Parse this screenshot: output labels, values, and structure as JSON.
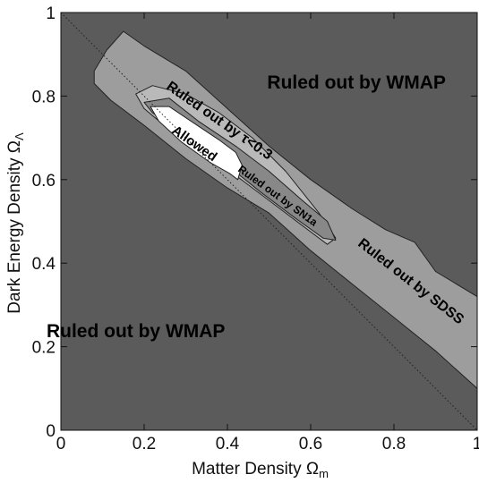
{
  "chart_data": {
    "type": "area",
    "xlabel": "Matter Density Ω",
    "xlabel_sub": "m",
    "ylabel": "Dark Energy Density Ω",
    "ylabel_sub": "Λ",
    "xlim": [
      0,
      1
    ],
    "ylim": [
      0,
      1
    ],
    "xticks": [
      0,
      0.2,
      0.4,
      0.6,
      0.8,
      1
    ],
    "xtick_labels": [
      "0",
      "0.2",
      "0.4",
      "0.6",
      "0.8",
      "1"
    ],
    "yticks": [
      0,
      0.2,
      0.4,
      0.6,
      0.8,
      1
    ],
    "ytick_labels": [
      "0",
      "0.2",
      "0.4",
      "0.6",
      "0.8",
      "1"
    ],
    "grid": false,
    "colors": {
      "background_region": "#5b5b5b",
      "sdss_region": "#9d9d9d",
      "tau_region": "#b9b9b9",
      "sn1a_region": "#888888",
      "allowed_region": "#ffffff",
      "outline": "#222222",
      "flat_line": "#222222"
    },
    "reference_line": {
      "name": "flat universe",
      "points": [
        [
          0,
          1
        ],
        [
          1,
          0
        ]
      ],
      "style": "dotted"
    },
    "regions": [
      {
        "label": "Ruled out by SDSS",
        "points": [
          [
            0.15,
            0.955
          ],
          [
            0.2,
            0.92
          ],
          [
            0.3,
            0.86
          ],
          [
            0.4,
            0.77
          ],
          [
            0.5,
            0.68
          ],
          [
            0.6,
            0.6
          ],
          [
            0.7,
            0.53
          ],
          [
            0.78,
            0.48
          ],
          [
            0.85,
            0.45
          ],
          [
            0.9,
            0.38
          ],
          [
            1.0,
            0.32
          ],
          [
            1.0,
            0.1
          ],
          [
            0.9,
            0.19
          ],
          [
            0.8,
            0.27
          ],
          [
            0.7,
            0.35
          ],
          [
            0.6,
            0.43
          ],
          [
            0.5,
            0.52
          ],
          [
            0.4,
            0.58
          ],
          [
            0.3,
            0.65
          ],
          [
            0.2,
            0.73
          ],
          [
            0.12,
            0.79
          ],
          [
            0.08,
            0.83
          ],
          [
            0.08,
            0.86
          ],
          [
            0.11,
            0.91
          ]
        ]
      },
      {
        "label": "Ruled out by τ<0.3",
        "points": [
          [
            0.18,
            0.805
          ],
          [
            0.22,
            0.825
          ],
          [
            0.3,
            0.805
          ],
          [
            0.38,
            0.76
          ],
          [
            0.46,
            0.7
          ],
          [
            0.54,
            0.62
          ],
          [
            0.62,
            0.52
          ],
          [
            0.66,
            0.46
          ],
          [
            0.64,
            0.445
          ],
          [
            0.58,
            0.49
          ],
          [
            0.5,
            0.55
          ],
          [
            0.42,
            0.61
          ],
          [
            0.34,
            0.66
          ],
          [
            0.26,
            0.72
          ],
          [
            0.2,
            0.77
          ]
        ]
      },
      {
        "label": "Ruled out by SN1a",
        "points": [
          [
            0.2,
            0.785
          ],
          [
            0.26,
            0.795
          ],
          [
            0.33,
            0.74
          ],
          [
            0.42,
            0.68
          ],
          [
            0.5,
            0.62
          ],
          [
            0.58,
            0.55
          ],
          [
            0.64,
            0.5
          ],
          [
            0.66,
            0.455
          ],
          [
            0.63,
            0.46
          ],
          [
            0.56,
            0.51
          ],
          [
            0.48,
            0.57
          ],
          [
            0.38,
            0.65
          ],
          [
            0.28,
            0.72
          ],
          [
            0.22,
            0.76
          ]
        ]
      },
      {
        "label": "Allowed",
        "points": [
          [
            0.215,
            0.775
          ],
          [
            0.26,
            0.775
          ],
          [
            0.32,
            0.735
          ],
          [
            0.38,
            0.695
          ],
          [
            0.42,
            0.665
          ],
          [
            0.435,
            0.635
          ],
          [
            0.425,
            0.6
          ],
          [
            0.405,
            0.615
          ],
          [
            0.36,
            0.64
          ],
          [
            0.29,
            0.69
          ],
          [
            0.235,
            0.74
          ]
        ]
      }
    ],
    "annotations": [
      {
        "text": "Ruled out by WMAP",
        "x": 0.71,
        "y": 0.83,
        "size": 21,
        "angle": 0
      },
      {
        "text": "Ruled out by WMAP",
        "x": 0.18,
        "y": 0.235,
        "size": 21,
        "angle": 0
      },
      {
        "text": "Ruled out by SDSS",
        "x": 0.84,
        "y": 0.355,
        "size": 16,
        "angle": 38
      },
      {
        "text": "Ruled out by τ<0.3",
        "x": 0.38,
        "y": 0.74,
        "size": 16,
        "angle": 35
      },
      {
        "text": "Ruled out by SN1a",
        "x": 0.52,
        "y": 0.56,
        "size": 12,
        "angle": 36
      },
      {
        "text": "Allowed",
        "x": 0.32,
        "y": 0.685,
        "size": 15,
        "angle": 35
      }
    ]
  }
}
